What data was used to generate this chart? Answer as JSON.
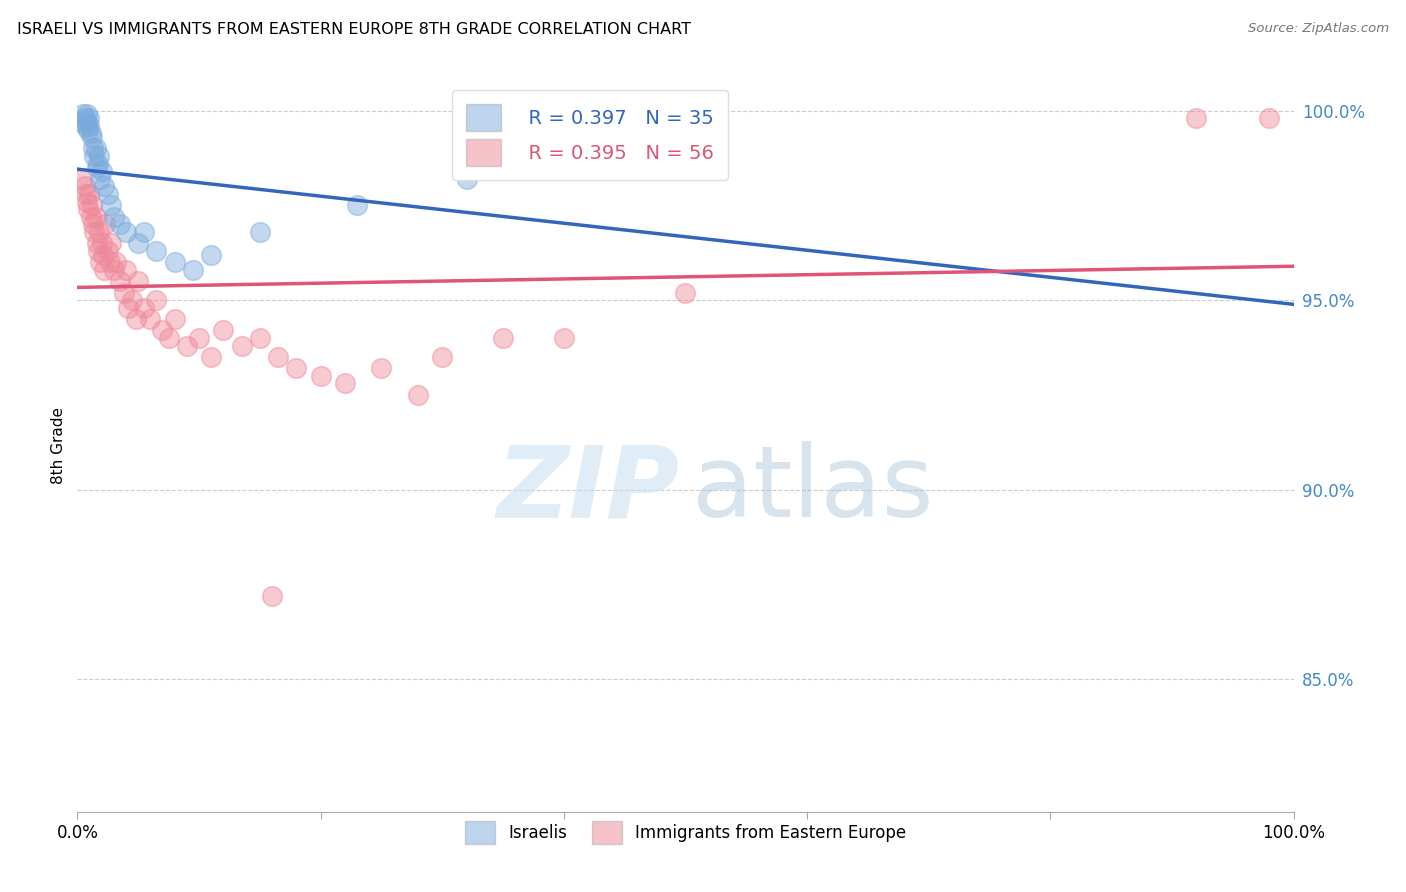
{
  "title": "ISRAELI VS IMMIGRANTS FROM EASTERN EUROPE 8TH GRADE CORRELATION CHART",
  "source": "Source: ZipAtlas.com",
  "ylabel": "8th Grade",
  "ytick_pcts": [
    100.0,
    95.0,
    90.0,
    85.0
  ],
  "xlim": [
    0.0,
    1.0
  ],
  "ylim": [
    0.815,
    1.008
  ],
  "israeli_R": "R = 0.397",
  "israeli_N": "N = 35",
  "immigrant_R": "R = 0.395",
  "immigrant_N": "N = 56",
  "israeli_color": "#7aaadd",
  "immigrant_color": "#ee8899",
  "line_israeli_color": "#3366bb",
  "line_immigrant_color": "#dd5577",
  "background_color": "#ffffff",
  "israeli_x": [
    0.004,
    0.005,
    0.006,
    0.007,
    0.008,
    0.008,
    0.009,
    0.01,
    0.01,
    0.011,
    0.012,
    0.013,
    0.014,
    0.015,
    0.016,
    0.017,
    0.018,
    0.019,
    0.02,
    0.022,
    0.025,
    0.028,
    0.03,
    0.035,
    0.04,
    0.05,
    0.055,
    0.065,
    0.08,
    0.095,
    0.11,
    0.15,
    0.23,
    0.32,
    0.42
  ],
  "israeli_y": [
    0.997,
    0.999,
    0.998,
    0.996,
    0.997,
    0.999,
    0.995,
    0.998,
    0.996,
    0.994,
    0.993,
    0.99,
    0.988,
    0.99,
    0.985,
    0.986,
    0.988,
    0.982,
    0.984,
    0.98,
    0.978,
    0.975,
    0.972,
    0.97,
    0.968,
    0.965,
    0.968,
    0.963,
    0.96,
    0.958,
    0.962,
    0.968,
    0.975,
    0.982,
    0.99
  ],
  "immigrant_x": [
    0.004,
    0.006,
    0.007,
    0.008,
    0.009,
    0.01,
    0.011,
    0.012,
    0.013,
    0.014,
    0.015,
    0.016,
    0.017,
    0.018,
    0.019,
    0.02,
    0.021,
    0.022,
    0.023,
    0.025,
    0.027,
    0.028,
    0.03,
    0.032,
    0.035,
    0.038,
    0.04,
    0.042,
    0.045,
    0.048,
    0.05,
    0.055,
    0.06,
    0.065,
    0.07,
    0.075,
    0.08,
    0.09,
    0.1,
    0.11,
    0.12,
    0.135,
    0.15,
    0.165,
    0.18,
    0.2,
    0.22,
    0.25,
    0.28,
    0.16,
    0.3,
    0.35,
    0.4,
    0.5,
    0.92,
    0.98
  ],
  "immigrant_y": [
    0.982,
    0.98,
    0.978,
    0.976,
    0.974,
    0.978,
    0.972,
    0.975,
    0.97,
    0.968,
    0.972,
    0.965,
    0.963,
    0.968,
    0.96,
    0.965,
    0.962,
    0.958,
    0.97,
    0.963,
    0.96,
    0.965,
    0.958,
    0.96,
    0.955,
    0.952,
    0.958,
    0.948,
    0.95,
    0.945,
    0.955,
    0.948,
    0.945,
    0.95,
    0.942,
    0.94,
    0.945,
    0.938,
    0.94,
    0.935,
    0.942,
    0.938,
    0.94,
    0.935,
    0.932,
    0.93,
    0.928,
    0.932,
    0.925,
    0.872,
    0.935,
    0.94,
    0.94,
    0.952,
    0.998,
    0.998
  ]
}
